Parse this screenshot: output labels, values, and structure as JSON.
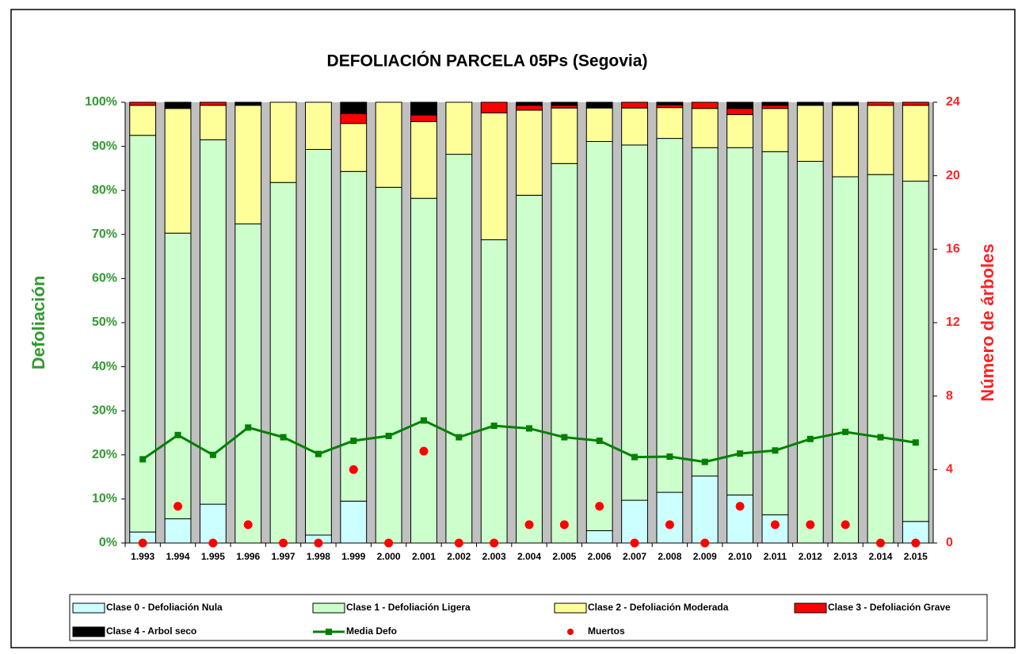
{
  "chart_data": {
    "type": "bar",
    "stacked": true,
    "title": "DEFOLIACIÓN PARCELA 05Ps (Segovia)",
    "y_label": "Defoliación",
    "y2_label": "Número de árboles",
    "categories": [
      "1.993",
      "1.994",
      "1.995",
      "1.996",
      "1.997",
      "1.998",
      "1.999",
      "2.000",
      "2.001",
      "2.002",
      "2.003",
      "2.004",
      "2.005",
      "2.006",
      "2.007",
      "2.008",
      "2.009",
      "2.010",
      "2.011",
      "2.012",
      "2.013",
      "2.014",
      "2.015"
    ],
    "series": [
      {
        "name": "Clase 0 - Defoliación Nula",
        "type": "bar",
        "color": "#ccffff",
        "values": [
          2.5,
          5.5,
          8.8,
          0,
          0,
          1.8,
          9.5,
          0,
          0,
          0,
          0,
          0,
          0,
          2.8,
          9.7,
          11.5,
          15.2,
          10.9,
          6.4,
          0,
          0,
          0,
          4.9
        ]
      },
      {
        "name": "Clase 1 - Defoliación Ligera",
        "type": "bar",
        "color": "#ccffcc",
        "values": [
          90,
          64.8,
          82.7,
          72.4,
          81.8,
          87.5,
          74.8,
          80.7,
          78.2,
          88.2,
          68.8,
          78.9,
          86.1,
          88.3,
          80.6,
          80.3,
          74.5,
          78.8,
          82.4,
          86.6,
          83.1,
          83.6,
          77.2
        ]
      },
      {
        "name": "Clase 2 - Defoliación Moderada",
        "type": "bar",
        "color": "#ffff99",
        "values": [
          6.8,
          28.3,
          7.8,
          26.9,
          18.2,
          10.7,
          10.9,
          19.3,
          17.4,
          11.8,
          28.8,
          19.3,
          12.6,
          7.6,
          8.4,
          7,
          8.9,
          7.5,
          9.8,
          12.7,
          16.2,
          15.7,
          17.2
        ]
      },
      {
        "name": "Clase 3 - Defoliación Grave",
        "type": "bar",
        "color": "#ff0000",
        "values": [
          0.7,
          0,
          0.7,
          0,
          0,
          0,
          2.2,
          0,
          1.5,
          0,
          2.4,
          1.1,
          0.6,
          0,
          1.3,
          0.6,
          1.4,
          1.4,
          0.7,
          0,
          0,
          0.7,
          0.7
        ]
      },
      {
        "name": "Clase 4 - Arbol seco",
        "type": "bar",
        "color": "#000000",
        "values": [
          0,
          1.4,
          0,
          0.7,
          0,
          0,
          2.6,
          0,
          2.9,
          0,
          0,
          0.7,
          0.7,
          1.3,
          0,
          0.6,
          0,
          1.4,
          0.7,
          0.7,
          0.7,
          0,
          0
        ]
      },
      {
        "name": "Media Defo",
        "type": "line",
        "color": "#008000",
        "values": [
          19,
          24.5,
          20,
          26.2,
          24,
          20.2,
          23.2,
          24.3,
          27.8,
          24,
          26.6,
          26,
          24,
          23.2,
          19.5,
          19.6,
          18.4,
          20.3,
          21,
          23.6,
          25.2,
          24,
          22.8
        ]
      },
      {
        "name": "Muertos",
        "type": "scatter",
        "color": "#ff0000",
        "axis": "y2",
        "values": [
          0,
          2,
          0,
          1,
          0,
          0,
          4,
          0,
          5,
          0,
          0,
          1,
          1,
          2,
          0,
          1,
          0,
          2,
          1,
          1,
          1,
          0,
          0
        ]
      }
    ],
    "ylim": [
      0,
      100
    ],
    "yticks": [
      {
        "value": 0,
        "label": "0%"
      },
      {
        "value": 10,
        "label": "10%"
      },
      {
        "value": 20,
        "label": "20%"
      },
      {
        "value": 30,
        "label": "30%"
      },
      {
        "value": 40,
        "label": "40%"
      },
      {
        "value": 50,
        "label": "50%"
      },
      {
        "value": 60,
        "label": "60%"
      },
      {
        "value": 70,
        "label": "70%"
      },
      {
        "value": 80,
        "label": "80%"
      },
      {
        "value": 90,
        "label": "90%"
      },
      {
        "value": 100,
        "label": "100%"
      }
    ],
    "y2lim": [
      0,
      24
    ],
    "y2ticks": [
      0,
      4,
      8,
      12,
      16,
      20,
      24
    ],
    "y_color": "#339933",
    "y2_color": "#ff2222",
    "plot_background": "#c0c0c0"
  }
}
